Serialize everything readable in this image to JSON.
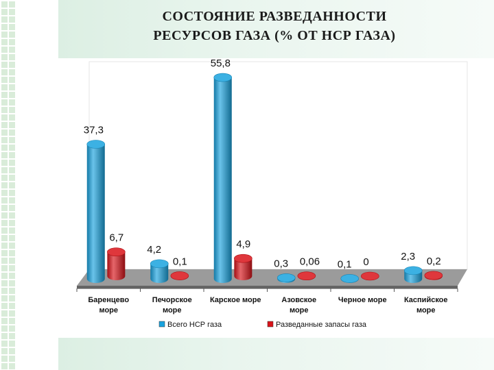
{
  "slide": {
    "title_line1": "СОСТОЯНИЕ РАЗВЕДАННОСТИ",
    "title_line2": "РЕСУРСОВ ГАЗА (% ОТ НСР ГАЗА)"
  },
  "colors": {
    "total": "#1aa3de",
    "explored": "#d9141a",
    "floor": "#9b9b9b",
    "back": "#ffffff"
  },
  "chart_data": {
    "type": "bar",
    "style": "3d-cylinder",
    "categories": [
      [
        "Баренцево",
        "море"
      ],
      [
        "Печорское",
        "море"
      ],
      [
        "Карское море"
      ],
      [
        "Азовское",
        "море"
      ],
      [
        "Черное море"
      ],
      [
        "Каспийское",
        "море"
      ]
    ],
    "series": [
      {
        "name": "Всего НСР газа",
        "values": [
          37.3,
          4.2,
          55.8,
          0.3,
          0.1,
          2.3
        ],
        "labels": [
          "37,3",
          "4,2",
          "55,8",
          "0,3",
          "0,1",
          "2,3"
        ]
      },
      {
        "name": "Разведанные запасы газа",
        "values": [
          6.7,
          0.1,
          4.9,
          0.06,
          0,
          0.2
        ],
        "labels": [
          "6,7",
          "0,1",
          "4,9",
          "0,06",
          "0",
          "0,2"
        ]
      }
    ],
    "ylim": [
      0,
      56
    ],
    "grid": false,
    "legend_position": "bottom"
  }
}
